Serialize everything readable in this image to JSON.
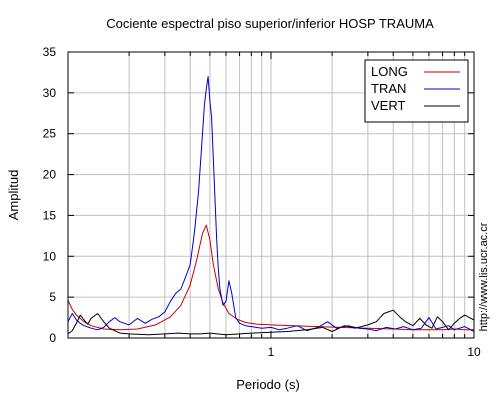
{
  "chart_data": {
    "type": "line",
    "title": "Cociente espectral piso superior/inferior  HOSP TRAUMA",
    "xlabel": "Periodo (s)",
    "ylabel": "Amplitud",
    "xscale": "log",
    "xlim": [
      0.1,
      10
    ],
    "ylim": [
      0,
      35
    ],
    "grid": true,
    "legend_position": "top-right",
    "xticks": [
      1,
      10
    ],
    "xtick_labels": [
      "1",
      "10"
    ],
    "yticks": [
      0,
      5,
      10,
      15,
      20,
      25,
      30,
      35
    ],
    "ytick_labels": [
      "0",
      "5",
      "10",
      "15",
      "20",
      "25",
      "30",
      "35"
    ],
    "side_note": "http://www.lis.ucr.ac.cr",
    "series": [
      {
        "name": "LONG",
        "color": "#cc0000",
        "x": [
          0.1,
          0.105,
          0.11,
          0.12,
          0.13,
          0.15,
          0.18,
          0.22,
          0.27,
          0.32,
          0.36,
          0.4,
          0.43,
          0.46,
          0.48,
          0.5,
          0.52,
          0.55,
          0.58,
          0.62,
          0.68,
          0.75,
          0.85,
          1.0,
          1.3,
          1.7,
          2.2,
          3.0,
          4.0,
          5.0,
          6.0,
          7.0,
          8.0,
          9.0,
          10.0
        ],
        "y": [
          4.6,
          3.5,
          2.8,
          2.0,
          1.5,
          1.1,
          1.0,
          1.1,
          1.6,
          2.6,
          4.0,
          6.5,
          9.5,
          12.8,
          13.8,
          12.0,
          9.0,
          6.0,
          4.3,
          3.0,
          2.3,
          1.9,
          1.7,
          1.6,
          1.5,
          1.4,
          1.3,
          1.2,
          1.1,
          1.0,
          1.0,
          1.0,
          1.1,
          1.0,
          1.0
        ]
      },
      {
        "name": "TRAN",
        "color": "#0000cc",
        "x": [
          0.1,
          0.105,
          0.11,
          0.115,
          0.12,
          0.13,
          0.14,
          0.15,
          0.16,
          0.17,
          0.18,
          0.2,
          0.22,
          0.24,
          0.26,
          0.28,
          0.3,
          0.32,
          0.34,
          0.36,
          0.38,
          0.4,
          0.42,
          0.44,
          0.46,
          0.47,
          0.48,
          0.49,
          0.5,
          0.51,
          0.52,
          0.53,
          0.54,
          0.55,
          0.56,
          0.58,
          0.6,
          0.62,
          0.64,
          0.67,
          0.7,
          0.75,
          0.8,
          0.9,
          1.0,
          1.1,
          1.2,
          1.35,
          1.5,
          1.7,
          1.9,
          2.1,
          2.4,
          2.7,
          3.0,
          3.3,
          3.7,
          4.1,
          4.5,
          5.0,
          5.5,
          6.0,
          6.5,
          7.0,
          7.5,
          8.0,
          9.0,
          10.0
        ],
        "y": [
          2.0,
          3.0,
          2.2,
          1.8,
          1.5,
          1.2,
          1.0,
          1.3,
          2.0,
          2.5,
          2.0,
          1.6,
          2.4,
          1.8,
          2.3,
          2.6,
          3.2,
          4.5,
          5.5,
          6.0,
          7.5,
          9.0,
          13.0,
          18.0,
          25.0,
          28.5,
          30.5,
          32.0,
          29.0,
          27.0,
          22.0,
          17.0,
          12.0,
          8.5,
          6.0,
          4.0,
          4.5,
          7.0,
          5.5,
          2.5,
          1.8,
          1.5,
          1.4,
          1.2,
          1.3,
          1.0,
          1.2,
          1.5,
          0.9,
          1.3,
          2.0,
          1.2,
          1.5,
          1.2,
          1.1,
          0.9,
          1.3,
          1.1,
          1.4,
          1.0,
          1.2,
          2.5,
          1.1,
          1.3,
          1.5,
          1.0,
          1.4,
          0.8
        ]
      },
      {
        "name": "VERT",
        "color": "#000000",
        "x": [
          0.1,
          0.105,
          0.11,
          0.115,
          0.12,
          0.125,
          0.13,
          0.14,
          0.15,
          0.16,
          0.18,
          0.2,
          0.25,
          0.3,
          0.35,
          0.4,
          0.45,
          0.5,
          0.6,
          0.7,
          0.8,
          1.0,
          1.2,
          1.5,
          1.8,
          2.0,
          2.3,
          2.6,
          3.0,
          3.3,
          3.6,
          4.0,
          4.3,
          4.6,
          5.0,
          5.4,
          5.8,
          6.2,
          6.6,
          7.0,
          7.5,
          8.0,
          8.5,
          9.0,
          9.5,
          10.0
        ],
        "y": [
          0.5,
          0.9,
          1.8,
          2.8,
          2.2,
          1.7,
          2.4,
          3.0,
          2.0,
          1.2,
          0.6,
          0.5,
          0.4,
          0.5,
          0.6,
          0.5,
          0.5,
          0.6,
          0.4,
          0.5,
          0.6,
          0.7,
          0.8,
          1.0,
          1.3,
          0.8,
          1.5,
          1.2,
          1.6,
          2.0,
          3.0,
          3.4,
          2.6,
          2.0,
          1.5,
          2.4,
          1.6,
          1.2,
          2.6,
          2.0,
          1.0,
          1.8,
          2.4,
          2.8,
          2.5,
          2.2
        ]
      }
    ]
  }
}
